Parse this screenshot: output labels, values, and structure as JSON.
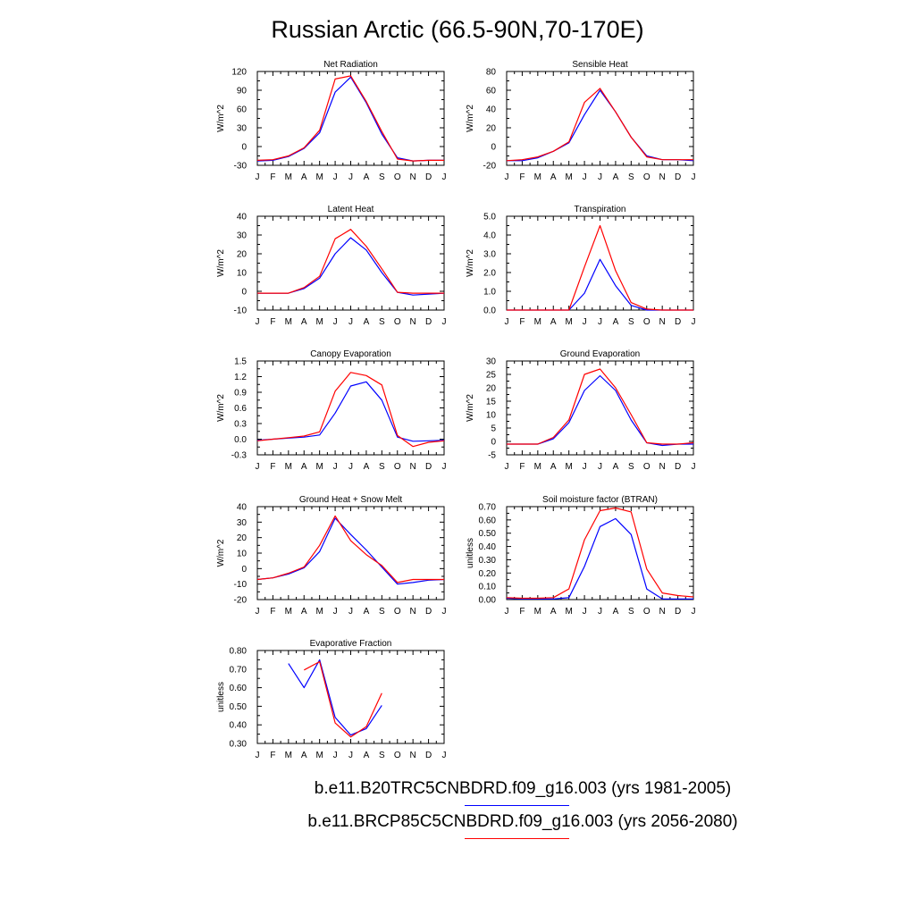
{
  "title": "Russian Arctic (66.5-90N,70-170E)",
  "months": [
    "J",
    "F",
    "M",
    "A",
    "M",
    "J",
    "J",
    "A",
    "S",
    "O",
    "N",
    "D",
    "J"
  ],
  "colors": {
    "series_1": "#0000ff",
    "series_2": "#ff0000",
    "frame": "#000000"
  },
  "legend": [
    {
      "label": "b.e11.B20TRC5CNBDRD.f09_g16.003 (yrs 1981-2005)",
      "color": "#0000ff"
    },
    {
      "label": "b.e11.BRCP85C5CNBDRD.f09_g16.003 (yrs 2056-2080)",
      "color": "#ff0000"
    }
  ],
  "chart_data": [
    {
      "type": "line",
      "title": "Net Radiation",
      "ylabel": "W/m^2",
      "ylim": [
        -30,
        120
      ],
      "yticks": [
        "-30",
        "0",
        "30",
        "60",
        "90",
        "120"
      ],
      "x": [
        "J",
        "F",
        "M",
        "A",
        "M",
        "J",
        "J",
        "A",
        "S",
        "O",
        "N",
        "D",
        "J"
      ],
      "series": [
        {
          "color": "#0000ff",
          "values": [
            -23,
            -22,
            -16,
            -3,
            22,
            87,
            111,
            70,
            20,
            -18,
            -23,
            -22,
            -22
          ]
        },
        {
          "color": "#ff0000",
          "values": [
            -22,
            -21,
            -15,
            -2,
            26,
            108,
            113,
            72,
            24,
            -20,
            -23,
            -22,
            -22
          ]
        }
      ]
    },
    {
      "type": "line",
      "title": "Sensible Heat",
      "ylabel": "W/m^2",
      "ylim": [
        -20,
        80
      ],
      "yticks": [
        "-20",
        "0",
        "20",
        "40",
        "60",
        "80"
      ],
      "x": [
        "J",
        "F",
        "M",
        "A",
        "M",
        "J",
        "J",
        "A",
        "S",
        "O",
        "N",
        "D",
        "J"
      ],
      "series": [
        {
          "color": "#0000ff",
          "values": [
            -15,
            -15,
            -12,
            -5,
            4,
            34,
            60,
            37,
            10,
            -10,
            -14,
            -14,
            -15
          ]
        },
        {
          "color": "#ff0000",
          "values": [
            -15,
            -14,
            -11,
            -5,
            5,
            47,
            62,
            37,
            10,
            -11,
            -14,
            -14,
            -14
          ]
        }
      ]
    },
    {
      "type": "line",
      "title": "Latent Heat",
      "ylabel": "W/m^2",
      "ylim": [
        -10,
        40
      ],
      "yticks": [
        "-10",
        "0",
        "10",
        "20",
        "30",
        "40"
      ],
      "x": [
        "J",
        "F",
        "M",
        "A",
        "M",
        "J",
        "J",
        "A",
        "S",
        "O",
        "N",
        "D",
        "J"
      ],
      "series": [
        {
          "color": "#0000ff",
          "values": [
            -1,
            -1,
            -1,
            1.5,
            7,
            20,
            28.5,
            22,
            10,
            -0.5,
            -2,
            -1.5,
            -1
          ]
        },
        {
          "color": "#ff0000",
          "values": [
            -1,
            -1,
            -1,
            2,
            8,
            28,
            33,
            24,
            12,
            -0.5,
            -1,
            -1,
            -1
          ]
        }
      ]
    },
    {
      "type": "line",
      "title": "Transpiration",
      "ylabel": "W/m^2",
      "ylim": [
        0,
        5
      ],
      "yticks": [
        "0.0",
        "1.0",
        "2.0",
        "3.0",
        "4.0",
        "5.0"
      ],
      "x": [
        "J",
        "F",
        "M",
        "A",
        "M",
        "J",
        "J",
        "A",
        "S",
        "O",
        "N",
        "D",
        "J"
      ],
      "series": [
        {
          "color": "#0000ff",
          "values": [
            0,
            0,
            0,
            0,
            0,
            0.9,
            2.7,
            1.3,
            0.25,
            0,
            0,
            0,
            0
          ]
        },
        {
          "color": "#ff0000",
          "values": [
            0,
            0,
            0,
            0,
            0,
            2.3,
            4.5,
            2.1,
            0.4,
            0.05,
            0,
            0,
            0
          ]
        }
      ]
    },
    {
      "type": "line",
      "title": "Canopy Evaporation",
      "ylabel": "W/m^2",
      "ylim": [
        -0.3,
        1.5
      ],
      "yticks": [
        "-0.3",
        "0.0",
        "0.3",
        "0.6",
        "0.9",
        "1.2",
        "1.5"
      ],
      "x": [
        "J",
        "F",
        "M",
        "A",
        "M",
        "J",
        "J",
        "A",
        "S",
        "O",
        "N",
        "D",
        "J"
      ],
      "series": [
        {
          "color": "#0000ff",
          "values": [
            -0.02,
            0,
            0.02,
            0.04,
            0.08,
            0.5,
            1.02,
            1.1,
            0.75,
            0.04,
            -0.04,
            -0.03,
            -0.02
          ]
        },
        {
          "color": "#ff0000",
          "values": [
            -0.03,
            0,
            0.03,
            0.06,
            0.14,
            0.92,
            1.28,
            1.22,
            1.04,
            0.07,
            -0.14,
            -0.06,
            -0.03
          ]
        }
      ]
    },
    {
      "type": "line",
      "title": "Ground Evaporation",
      "ylabel": "W/m^2",
      "ylim": [
        -5,
        30
      ],
      "yticks": [
        "-5",
        "0",
        "5",
        "10",
        "15",
        "20",
        "25",
        "30"
      ],
      "x": [
        "J",
        "F",
        "M",
        "A",
        "M",
        "J",
        "J",
        "A",
        "S",
        "O",
        "N",
        "D",
        "J"
      ],
      "series": [
        {
          "color": "#0000ff",
          "values": [
            -1,
            -1,
            -1,
            1,
            7,
            19,
            24.5,
            19,
            8,
            -0.5,
            -1.5,
            -1,
            -1
          ]
        },
        {
          "color": "#ff0000",
          "values": [
            -1,
            -1,
            -1,
            1.5,
            8,
            25,
            27,
            20,
            10,
            -0.5,
            -1,
            -1,
            -0.5
          ]
        }
      ]
    },
    {
      "type": "line",
      "title": "Ground Heat + Snow Melt",
      "ylabel": "W/m^2",
      "ylim": [
        -20,
        40
      ],
      "yticks": [
        "-20",
        "-10",
        "0",
        "10",
        "20",
        "30",
        "40"
      ],
      "x": [
        "J",
        "F",
        "M",
        "A",
        "M",
        "J",
        "J",
        "A",
        "S",
        "O",
        "N",
        "D",
        "J"
      ],
      "series": [
        {
          "color": "#0000ff",
          "values": [
            -7,
            -6,
            -3.5,
            0.5,
            11,
            32.5,
            22,
            12,
            1,
            -10,
            -9,
            -7.5,
            -7
          ]
        },
        {
          "color": "#ff0000",
          "values": [
            -7,
            -6,
            -3,
            1,
            15,
            34,
            18,
            9,
            2,
            -9,
            -7,
            -7,
            -7
          ]
        }
      ]
    },
    {
      "type": "line",
      "title": "Soil moisture factor (BTRAN)",
      "ylabel": "unitless",
      "ylim": [
        0,
        0.7
      ],
      "yticks": [
        "0.00",
        "0.10",
        "0.20",
        "0.30",
        "0.40",
        "0.50",
        "0.60",
        "0.70"
      ],
      "x": [
        "J",
        "F",
        "M",
        "A",
        "M",
        "J",
        "J",
        "A",
        "S",
        "O",
        "N",
        "D",
        "J"
      ],
      "series": [
        {
          "color": "#0000ff",
          "values": [
            0.01,
            0.005,
            0.005,
            0.005,
            0.015,
            0.25,
            0.55,
            0.61,
            0.49,
            0.08,
            0.005,
            0.005,
            0.005
          ]
        },
        {
          "color": "#ff0000",
          "values": [
            0.015,
            0.01,
            0.01,
            0.015,
            0.08,
            0.45,
            0.67,
            0.69,
            0.66,
            0.23,
            0.05,
            0.03,
            0.02
          ]
        }
      ]
    },
    {
      "type": "line",
      "title": "Evaporative Fraction",
      "ylabel": "unitless",
      "ylim": [
        0.3,
        0.8
      ],
      "yticks": [
        "0.30",
        "0.40",
        "0.50",
        "0.60",
        "0.70",
        "0.80"
      ],
      "x": [
        "J",
        "F",
        "M",
        "A",
        "M",
        "J",
        "J",
        "A",
        "S",
        "O",
        "N",
        "D",
        "J"
      ],
      "series": [
        {
          "color": "#0000ff",
          "values": [
            null,
            null,
            0.73,
            0.6,
            0.75,
            0.44,
            0.345,
            0.38,
            0.505,
            null,
            null,
            null,
            null
          ]
        },
        {
          "color": "#ff0000",
          "values": [
            null,
            null,
            null,
            0.695,
            0.74,
            0.41,
            0.335,
            0.39,
            0.57,
            null,
            null,
            null,
            null
          ]
        }
      ]
    }
  ]
}
